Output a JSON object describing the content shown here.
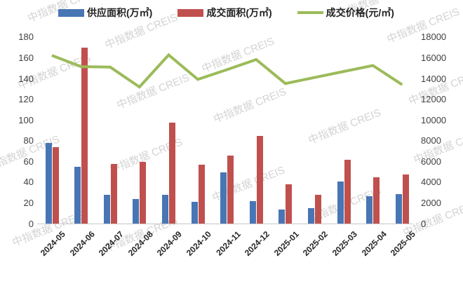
{
  "chart_data": {
    "type": "bar+line combo",
    "categories": [
      "2024-05",
      "2024-06",
      "2024-07",
      "2024-08",
      "2024-09",
      "2024-10",
      "2024-11",
      "2024-12",
      "2025-01",
      "2025-02",
      "2025-03",
      "2025-04",
      "2025-05"
    ],
    "series": [
      {
        "name": "供应面积(万㎡)",
        "type": "bar",
        "axis": "left",
        "color": "#4876B4",
        "values": [
          78,
          55,
          28,
          24,
          28,
          21,
          50,
          22,
          14,
          15,
          41,
          27,
          29
        ]
      },
      {
        "name": "成交面积(万㎡)",
        "type": "bar",
        "axis": "left",
        "color": "#C0504D",
        "values": [
          74,
          170,
          58,
          60,
          98,
          57,
          66,
          85,
          38,
          28,
          62,
          45,
          48
        ]
      },
      {
        "name": "成交价格(元/㎡)",
        "type": "line",
        "axis": "right",
        "color": "#9BBB59",
        "values": [
          16260,
          15180,
          15130,
          13220,
          16310,
          13950,
          14890,
          15860,
          13550,
          14130,
          14710,
          15290,
          13440
        ]
      }
    ],
    "left_axis": {
      "min": 0,
      "max": 180,
      "step": 20,
      "ticks": [
        0,
        20,
        40,
        60,
        80,
        100,
        120,
        140,
        160,
        180
      ]
    },
    "right_axis": {
      "min": 0,
      "max": 18000,
      "step": 2000,
      "ticks": [
        0,
        2000,
        4000,
        6000,
        8000,
        10000,
        12000,
        14000,
        16000,
        18000
      ]
    },
    "grid": "off",
    "legend_position": "top",
    "title": ""
  },
  "watermark": {
    "text": "中指数据 CREIS"
  },
  "colors": {
    "supply_bar": "#4876B4",
    "transaction_bar": "#C0504D",
    "price_line": "#9BBB59",
    "axis_text": "#404040",
    "axis_line": "#c6c6c6",
    "watermark": "#d3d3d3"
  }
}
